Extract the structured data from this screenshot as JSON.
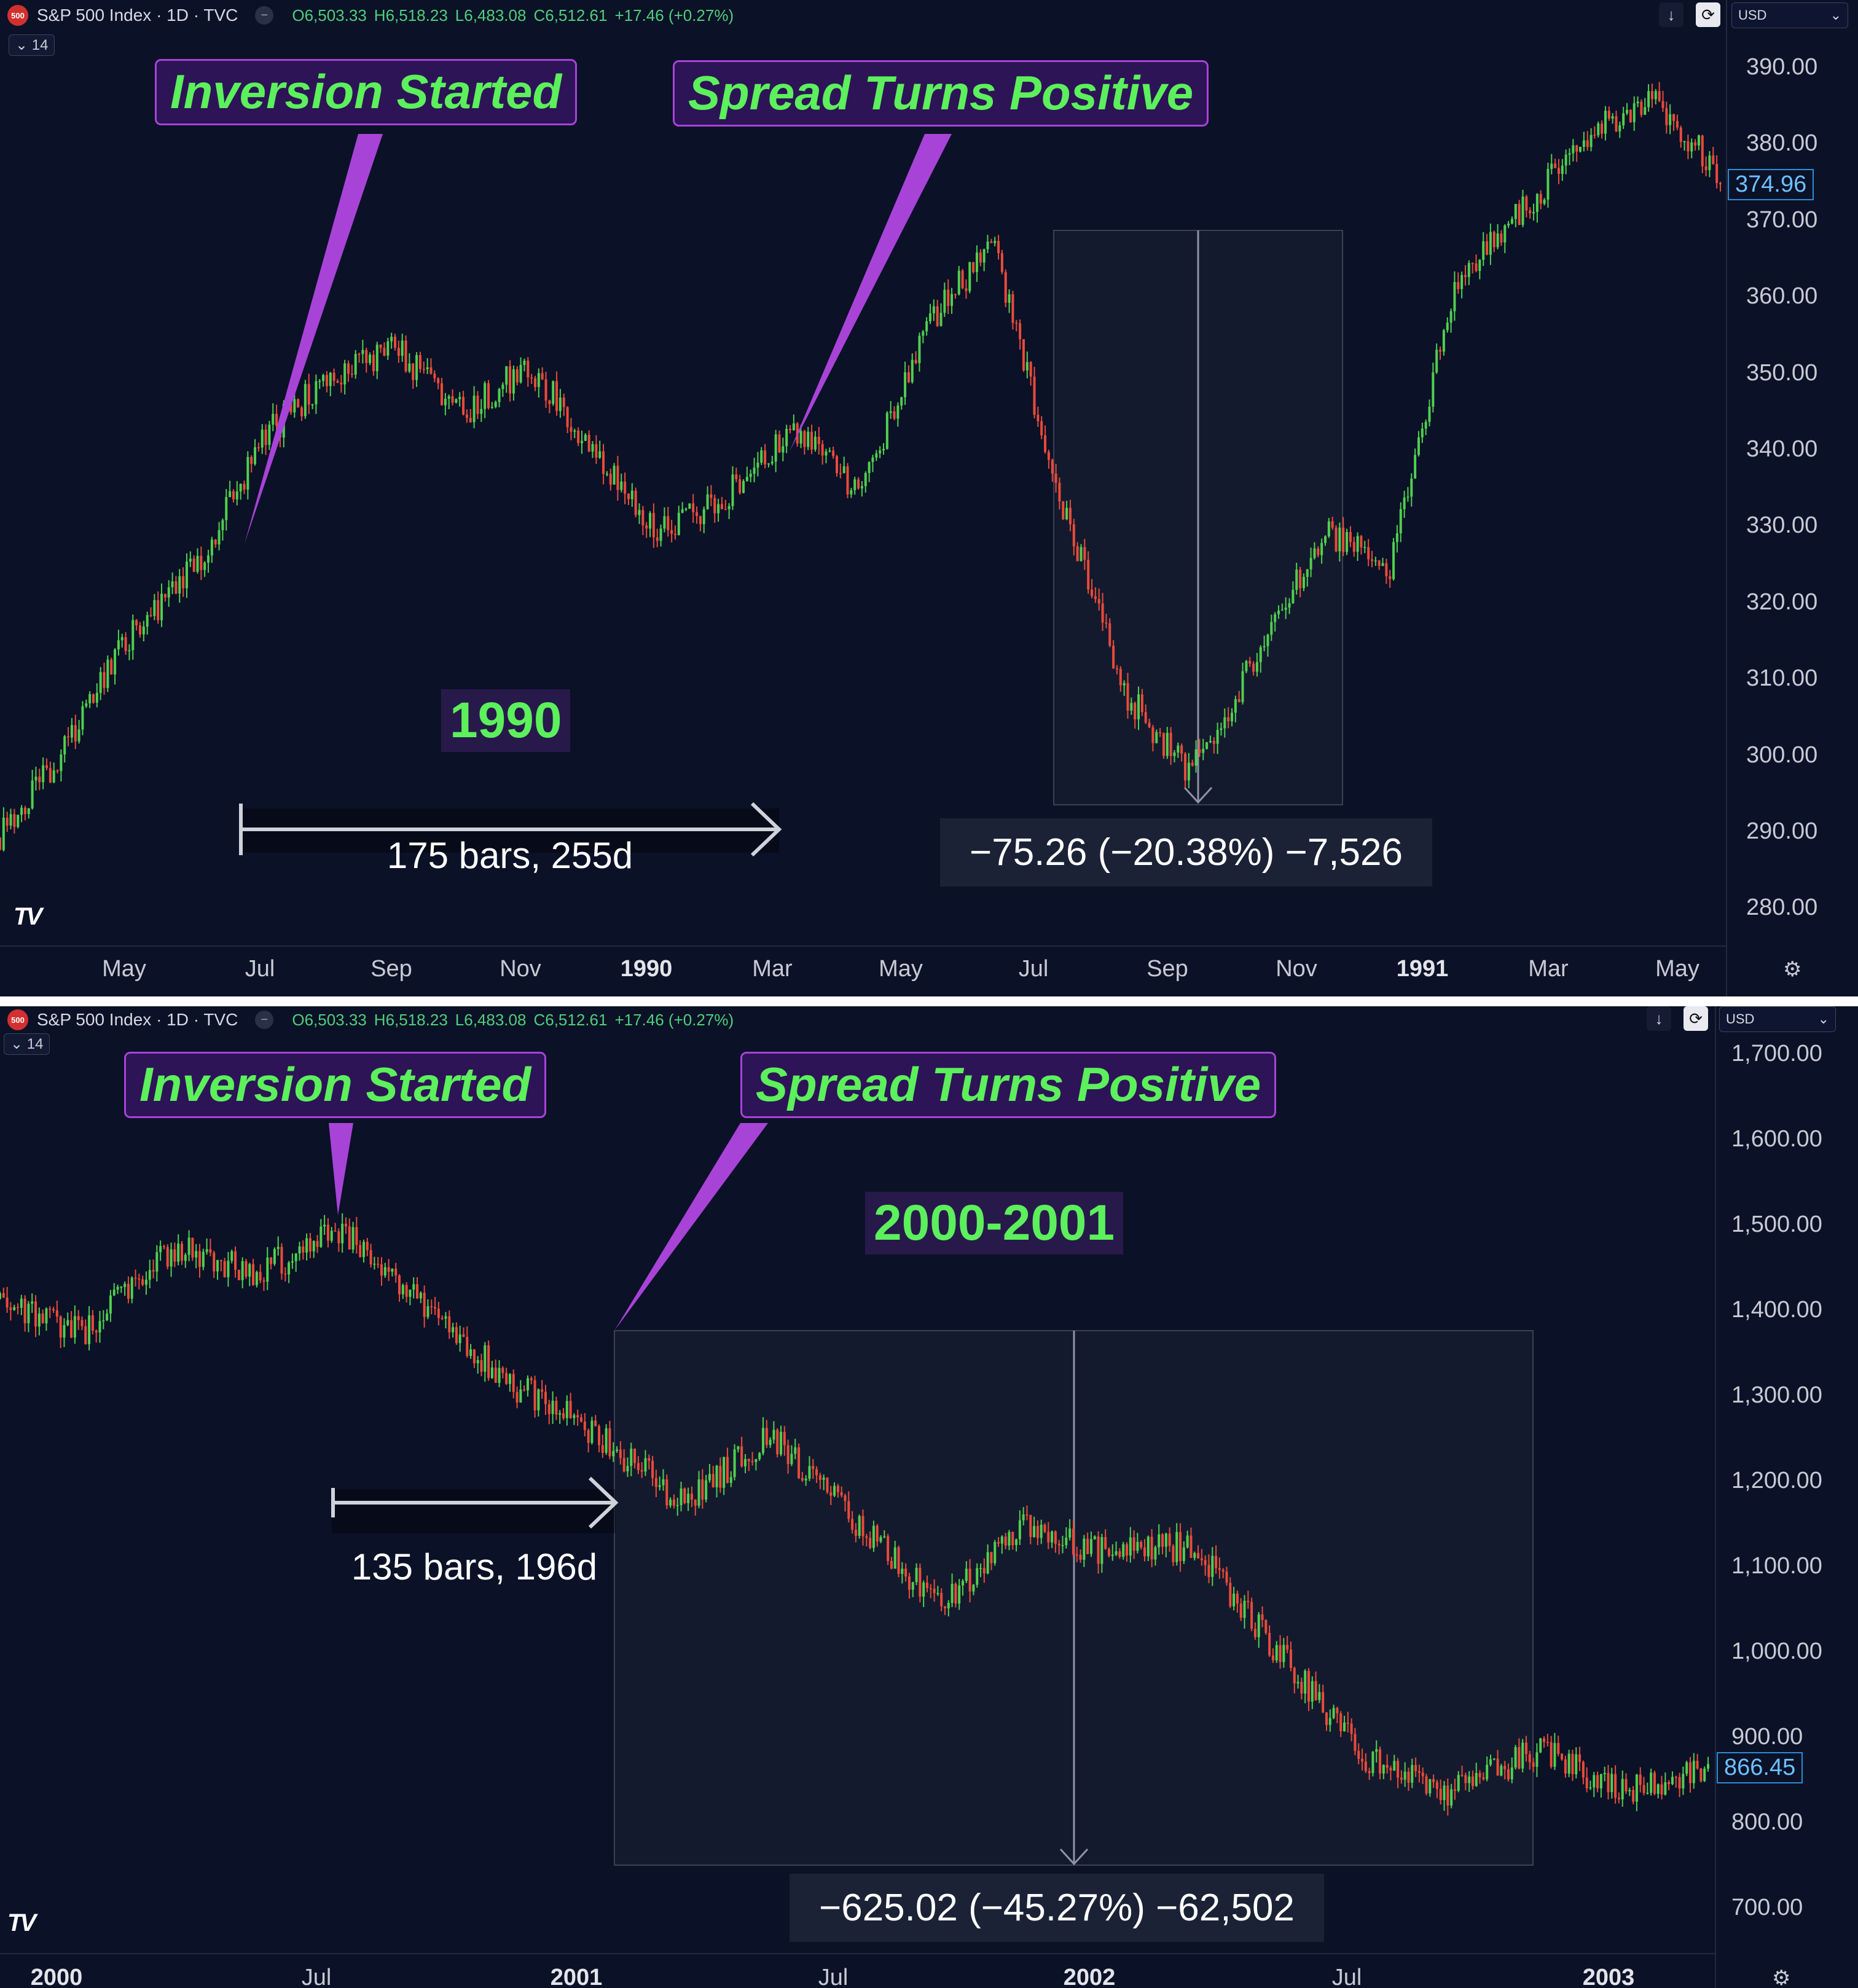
{
  "colors": {
    "up": "#4fcf4f",
    "down": "#e84b3a",
    "bg": "#0b1127",
    "callout_bg": "#2d1456",
    "callout_border": "#a843d8",
    "label_green": "#5cf05c"
  },
  "panels": [
    {
      "id": "top",
      "header": {
        "symbol_icon": "500",
        "title": "S&P 500 Index · 1D · TVC",
        "open": "O6,503.33",
        "high": "H6,518.23",
        "low": "L6,483.08",
        "close": "C6,512.61",
        "change": "+17.46 (+0.27%)"
      },
      "interval_badge": "14",
      "currency": "USD",
      "last_price": "374.96",
      "callouts": {
        "inversion": "Inversion Started",
        "spread": "Spread Turns Positive"
      },
      "year_label": "1990",
      "bars_label": "175 bars, 255d",
      "measure_label": "−75.26 (−20.38%) −7,526",
      "y_ticks": [
        "390.00",
        "380.00",
        "370.00",
        "360.00",
        "350.00",
        "340.00",
        "330.00",
        "320.00",
        "310.00",
        "300.00",
        "290.00",
        "280.00"
      ],
      "x_ticks": [
        {
          "label": "May",
          "year": false
        },
        {
          "label": "Jul",
          "year": false
        },
        {
          "label": "Sep",
          "year": false
        },
        {
          "label": "Nov",
          "year": false
        },
        {
          "label": "1990",
          "year": true
        },
        {
          "label": "Mar",
          "year": false
        },
        {
          "label": "May",
          "year": false
        },
        {
          "label": "Jul",
          "year": false
        },
        {
          "label": "Sep",
          "year": false
        },
        {
          "label": "Nov",
          "year": false
        },
        {
          "label": "1991",
          "year": true
        },
        {
          "label": "Mar",
          "year": false
        },
        {
          "label": "May",
          "year": false
        }
      ]
    },
    {
      "id": "bottom",
      "header": {
        "symbol_icon": "500",
        "title": "S&P 500 Index · 1D · TVC",
        "open": "O6,503.33",
        "high": "H6,518.23",
        "low": "L6,483.08",
        "close": "C6,512.61",
        "change": "+17.46 (+0.27%)"
      },
      "interval_badge": "14",
      "currency": "USD",
      "last_price": "866.45",
      "callouts": {
        "inversion": "Inversion Started",
        "spread": "Spread Turns Positive"
      },
      "year_label": "2000-2001",
      "bars_label": "135 bars, 196d",
      "measure_label": "−625.02 (−45.27%) −62,502",
      "y_ticks": [
        "1,700.00",
        "1,600.00",
        "1,500.00",
        "1,400.00",
        "1,300.00",
        "1,200.00",
        "1,100.00",
        "1,000.00",
        "900.00",
        "800.00",
        "700.00"
      ],
      "x_ticks": [
        {
          "label": "2000",
          "year": true
        },
        {
          "label": "Jul",
          "year": false
        },
        {
          "label": "2001",
          "year": true
        },
        {
          "label": "Jul",
          "year": false
        },
        {
          "label": "2002",
          "year": true
        },
        {
          "label": "Jul",
          "year": false
        },
        {
          "label": "2003",
          "year": true
        }
      ]
    }
  ],
  "chart_data": [
    {
      "type": "line",
      "title": "S&P 500 Index · 1D · TVC",
      "ylim": [
        280,
        392
      ],
      "x": [
        "1989-04",
        "1989-05",
        "1989-06",
        "1989-07",
        "1989-08",
        "1989-09",
        "1989-10",
        "1989-11",
        "1989-12",
        "1990-01",
        "1990-02",
        "1990-03",
        "1990-04",
        "1990-05",
        "1990-06",
        "1990-07",
        "1990-08",
        "1990-09",
        "1990-10",
        "1990-11",
        "1990-12",
        "1991-01",
        "1991-02",
        "1991-03",
        "1991-04",
        "1991-05",
        "1991-06"
      ],
      "series": [
        {
          "values": [
            292,
            303,
            318,
            326,
            342,
            350,
            353,
            345,
            351,
            340,
            330,
            335,
            343,
            335,
            356,
            366,
            335,
            310,
            300,
            315,
            330,
            326,
            362,
            370,
            380,
            384,
            375
          ]
        }
      ]
    },
    {
      "type": "line",
      "title": "S&P 500 Index · 1D · TVC",
      "ylim": [
        660,
        1720
      ],
      "x": [
        "1999-12",
        "2000-02",
        "2000-04",
        "2000-06",
        "2000-08",
        "2000-10",
        "2000-12",
        "2001-02",
        "2001-04",
        "2001-06",
        "2001-08",
        "2001-10",
        "2001-12",
        "2002-02",
        "2002-04",
        "2002-06",
        "2002-08",
        "2002-10",
        "2002-12",
        "2003-02",
        "2003-04"
      ],
      "series": [
        {
          "values": [
            1420,
            1380,
            1480,
            1450,
            1500,
            1410,
            1320,
            1260,
            1180,
            1260,
            1160,
            1060,
            1150,
            1120,
            1130,
            1000,
            880,
            840,
            890,
            845,
            866
          ]
        }
      ]
    }
  ]
}
